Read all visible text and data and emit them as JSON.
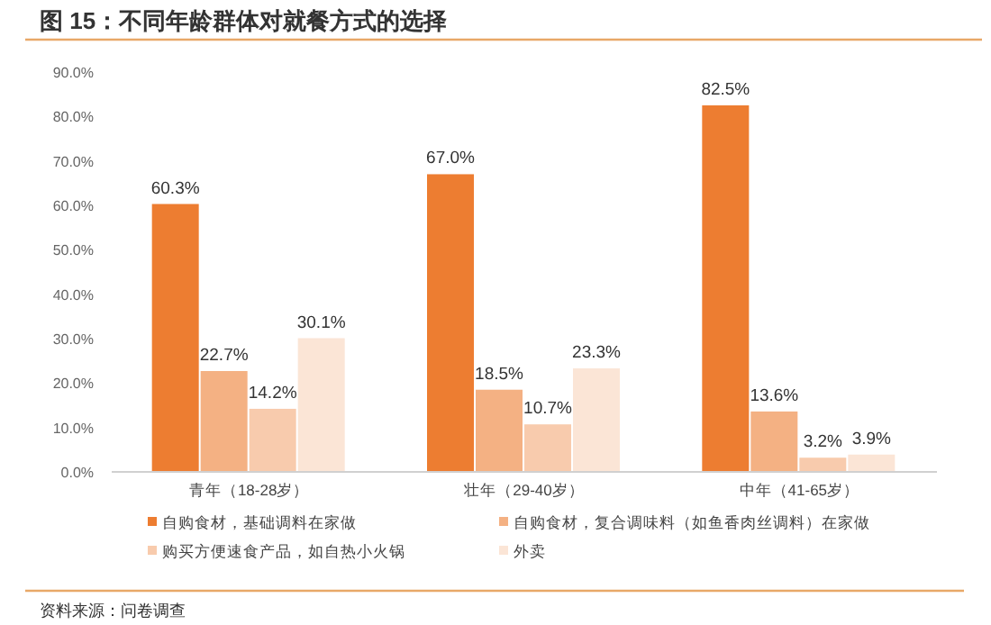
{
  "chart_data": {
    "type": "bar",
    "title": "图 15：不同年龄群体对就餐方式的选择",
    "categories": [
      "青年（18-28岁）",
      "壮年（29-40岁）",
      "中年（41-65岁）"
    ],
    "series": [
      {
        "name": "自购食材，基础调料在家做",
        "color": "#ed7d31",
        "values": [
          60.3,
          67.0,
          82.5
        ],
        "value_labels": [
          "60.3%",
          "67.0%",
          "82.5%"
        ]
      },
      {
        "name": "自购食材，复合调味料（如鱼香肉丝调料）在家做",
        "color": "#f4b183",
        "values": [
          22.7,
          18.5,
          13.6
        ],
        "value_labels": [
          "22.7%",
          "18.5%",
          "13.6%"
        ]
      },
      {
        "name": "购买方便速食产品，如自热小火锅",
        "color": "#f8cbad",
        "values": [
          14.2,
          10.7,
          3.2
        ],
        "value_labels": [
          "14.2%",
          "10.7%",
          "3.2%"
        ]
      },
      {
        "name": "外卖",
        "color": "#fbe5d6",
        "values": [
          30.1,
          23.3,
          3.9
        ],
        "value_labels": [
          "30.1%",
          "23.3%",
          "3.9%"
        ]
      }
    ],
    "ylim": [
      0,
      90
    ],
    "yticks": [
      {
        "value": 0,
        "label": "0.0%"
      },
      {
        "value": 10,
        "label": "10.0%"
      },
      {
        "value": 20,
        "label": "20.0%"
      },
      {
        "value": 30,
        "label": "30.0%"
      },
      {
        "value": 40,
        "label": "40.0%"
      },
      {
        "value": 50,
        "label": "50.0%"
      },
      {
        "value": 60,
        "label": "60.0%"
      },
      {
        "value": 70,
        "label": "70.0%"
      },
      {
        "value": 80,
        "label": "80.0%"
      },
      {
        "value": 90,
        "label": "90.0%"
      }
    ],
    "grid": false,
    "legend": "bottom",
    "annotations": [
      "资料来源：问卷调查"
    ]
  }
}
